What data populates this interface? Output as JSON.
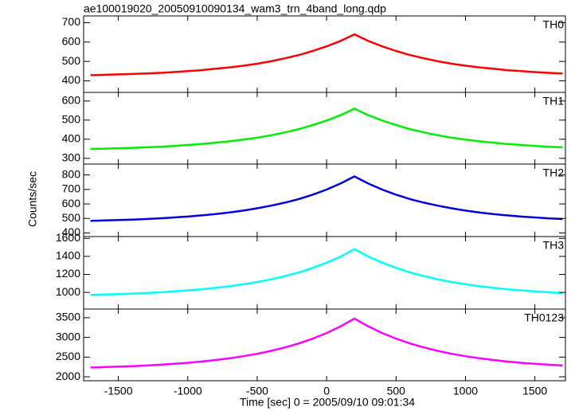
{
  "chart_data": {
    "type": "line",
    "title": "ae100019020_20050910090134_wam3_trn_4band_long.qdp",
    "xlabel": "Time [sec] 0 = 2005/09/10 09:01:34",
    "ylabel": "Counts/sec",
    "xlim": [
      -1750,
      1720
    ],
    "xticks": [
      -1500,
      -1000,
      -500,
      0,
      500,
      1000,
      1500
    ],
    "x": [
      -1700,
      -1600,
      -1500,
      -1400,
      -1300,
      -1200,
      -1100,
      -1000,
      -900,
      -800,
      -700,
      -600,
      -500,
      -400,
      -300,
      -200,
      -100,
      0,
      100,
      200,
      300,
      400,
      500,
      600,
      700,
      800,
      900,
      1000,
      1100,
      1200,
      1300,
      1400,
      1500,
      1600,
      1700
    ],
    "panels": [
      {
        "name": "TH0",
        "color": "#ff0000",
        "ylim": [
          340,
          735
        ],
        "yticks": [
          400,
          500,
          600,
          700
        ],
        "values": [
          429,
          431,
          433,
          435,
          438,
          441,
          445,
          450,
          455,
          462,
          469,
          478,
          488,
          501,
          516,
          533,
          554,
          578,
          606,
          640,
          606,
          578,
          554,
          533,
          516,
          501,
          488,
          478,
          469,
          462,
          455,
          450,
          445,
          441,
          438
        ]
      },
      {
        "name": "TH1",
        "color": "#00ee00",
        "ylim": [
          270,
          645
        ],
        "yticks": [
          300,
          400,
          500,
          600
        ],
        "values": [
          349,
          351,
          353,
          355,
          358,
          361,
          365,
          370,
          375,
          382,
          389,
          398,
          408,
          421,
          436,
          453,
          474,
          498,
          526,
          560,
          526,
          498,
          474,
          453,
          436,
          421,
          408,
          398,
          389,
          382,
          375,
          370,
          365,
          361,
          358
        ]
      },
      {
        "name": "TH2",
        "color": "#0000dd",
        "ylim": [
          375,
          875
        ],
        "yticks": [
          400,
          500,
          600,
          700,
          800
        ],
        "values": [
          483,
          486,
          489,
          492,
          496,
          501,
          507,
          513,
          521,
          530,
          541,
          554,
          570,
          588,
          609,
          634,
          664,
          699,
          741,
          790,
          741,
          699,
          664,
          634,
          609,
          588,
          570,
          554,
          541,
          530,
          521,
          513,
          507,
          501,
          496
        ]
      },
      {
        "name": "TH3",
        "color": "#00ffff",
        "ylim": [
          815,
          1620
        ],
        "yticks": [
          1000,
          1200,
          1400,
          1600
        ],
        "values": [
          972,
          977,
          981,
          987,
          993,
          1001,
          1011,
          1022,
          1035,
          1050,
          1068,
          1090,
          1115,
          1145,
          1181,
          1222,
          1272,
          1330,
          1398,
          1480,
          1398,
          1330,
          1272,
          1222,
          1181,
          1145,
          1115,
          1090,
          1068,
          1050,
          1035,
          1022,
          1011,
          1001,
          993
        ]
      },
      {
        "name": "TH0123",
        "color": "#ff00ff",
        "ylim": [
          1900,
          3720
        ],
        "yticks": [
          2000,
          2500,
          3000,
          3500
        ],
        "values": [
          2235,
          2245,
          2257,
          2270,
          2287,
          2306,
          2330,
          2356,
          2388,
          2426,
          2470,
          2523,
          2584,
          2658,
          2746,
          2847,
          2969,
          3112,
          3280,
          3480,
          3280,
          3112,
          2969,
          2847,
          2746,
          2658,
          2584,
          2523,
          2470,
          2426,
          2388,
          2356,
          2330,
          2306,
          2287
        ]
      }
    ]
  }
}
